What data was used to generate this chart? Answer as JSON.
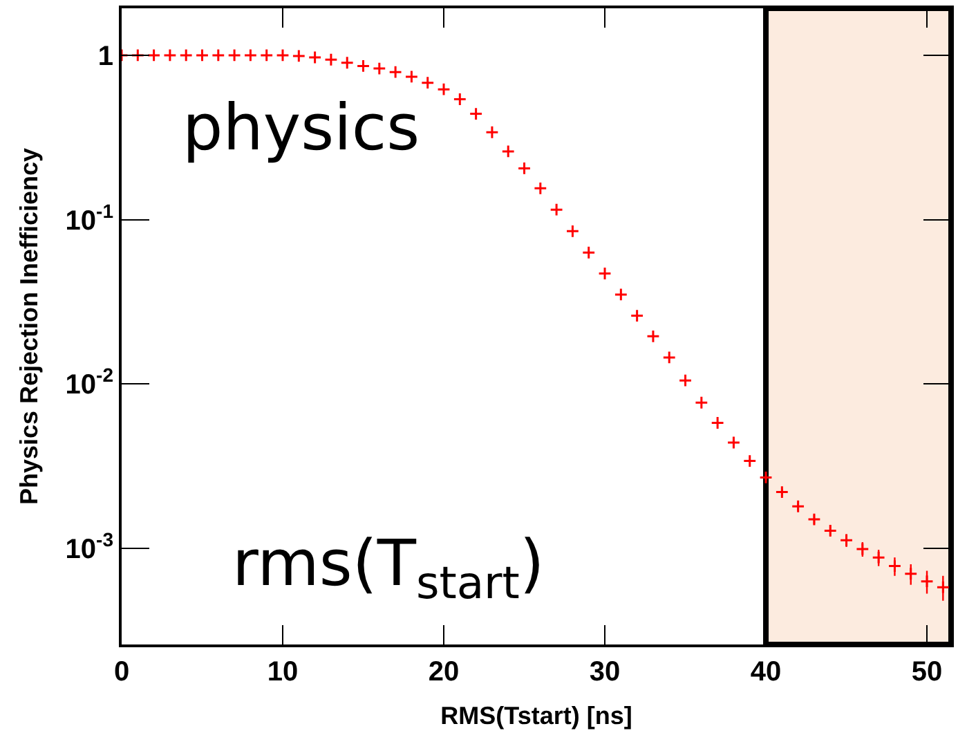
{
  "chart_data": {
    "type": "scatter",
    "xlabel": "RMS(Tstart) [ns]",
    "ylabel": "Physics Rejection Inefficiency",
    "annotations": [
      "physics",
      "rms(T$_{start}$)"
    ],
    "x": [
      0,
      1,
      2,
      3,
      4,
      5,
      6,
      7,
      8,
      9,
      10,
      11,
      12,
      13,
      14,
      15,
      16,
      17,
      18,
      19,
      20,
      21,
      22,
      23,
      24,
      25,
      26,
      27,
      28,
      29,
      30,
      31,
      32,
      33,
      34,
      35,
      36,
      37,
      38,
      39,
      40,
      41,
      42,
      43,
      44,
      45,
      46,
      47,
      48,
      49,
      50,
      51
    ],
    "series": [
      {
        "color": "#ff0000",
        "values": [
          1.0,
          1.0,
          1.0,
          1.0,
          1.0,
          1.0,
          1.0,
          1.0,
          1.0,
          1.0,
          1.0,
          0.99,
          0.97,
          0.94,
          0.9,
          0.86,
          0.83,
          0.79,
          0.74,
          0.68,
          0.62,
          0.54,
          0.44,
          0.34,
          0.26,
          0.205,
          0.155,
          0.115,
          0.085,
          0.063,
          0.047,
          0.035,
          0.026,
          0.0195,
          0.0145,
          0.0105,
          0.0077,
          0.0058,
          0.0044,
          0.0034,
          0.0027,
          0.0022,
          0.0018,
          0.0015,
          0.00128,
          0.00112,
          0.00099,
          0.00088,
          0.00078,
          0.0007,
          0.00063,
          0.00058
        ],
        "errors": [
          null,
          null,
          null,
          null,
          null,
          null,
          null,
          null,
          null,
          null,
          null,
          null,
          null,
          null,
          null,
          null,
          null,
          null,
          null,
          null,
          null,
          null,
          null,
          null,
          null,
          null,
          null,
          null,
          null,
          null,
          null,
          null,
          null,
          null,
          null,
          null,
          null,
          null,
          null,
          null,
          0.0001,
          0.0001,
          0.0001,
          0.0001,
          0.0001,
          0.0001,
          0.0001,
          0.0001,
          0.0001,
          0.0001,
          0.0001,
          0.0001
        ]
      }
    ],
    "marker": "cross",
    "log": "y",
    "xlim": [
      0,
      51.5
    ],
    "xticks": [
      0,
      10,
      20,
      30,
      40,
      50
    ],
    "ylim": [
      0.00026,
      1.93
    ],
    "yticks": [
      {
        "value": 0.001,
        "label": "10$^{-3}$"
      },
      {
        "value": 0.01,
        "label": "10$^{-2}$"
      },
      {
        "value": 0.1,
        "label": "10$^{-1}$"
      },
      1
    ],
    "bands": [
      {
        "axis": "x",
        "from": 40,
        "to": 51.5,
        "color": "#fcebdf"
      }
    ],
    "grid": false
  }
}
